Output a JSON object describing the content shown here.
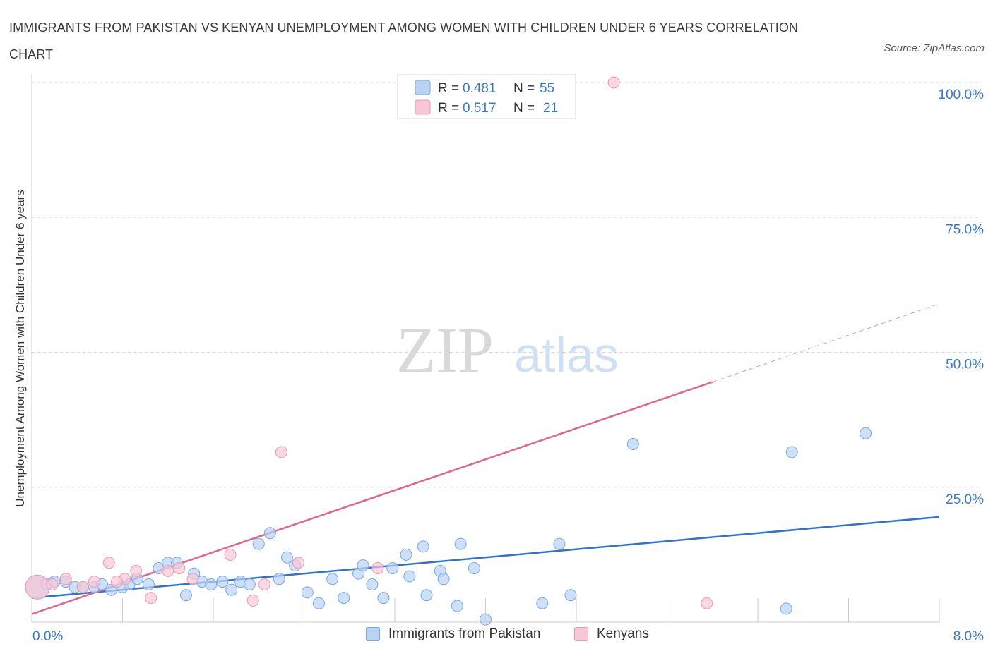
{
  "title": "IMMIGRANTS FROM PAKISTAN VS KENYAN UNEMPLOYMENT AMONG WOMEN WITH CHILDREN UNDER 6 YEARS CORRELATION CHART",
  "source": "Source: ZipAtlas.com",
  "watermark": {
    "zip": "ZIP",
    "atlas": "atlas"
  },
  "colors": {
    "blue_fill": "#b9d3f5",
    "blue_stroke": "#7aa8e0",
    "blue_line": "#2f73d0",
    "pink_fill": "#f8c6d6",
    "pink_stroke": "#e99ab3",
    "pink_line": "#e0648e",
    "value_text": "#3a78c9",
    "grid": "#d8d8d8"
  },
  "legend": {
    "rows": [
      {
        "r_label": "R = ",
        "r_value": "0.481",
        "n_label": "N = ",
        "n_value": "55",
        "color": "blue"
      },
      {
        "r_label": "R = ",
        "r_value": "0.517",
        "n_label": "N = ",
        "n_value": "21",
        "color": "pink"
      }
    ]
  },
  "chart_data": {
    "type": "scatter",
    "title": "IMMIGRANTS FROM PAKISTAN VS KENYAN UNEMPLOYMENT AMONG WOMEN WITH CHILDREN UNDER 6 YEARS CORRELATION CHART",
    "xlabel": "",
    "ylabel": "Unemployment Among Women with Children Under 6 years",
    "xlim": [
      0,
      8
    ],
    "ylim": [
      0,
      100
    ],
    "x_tick_labels": [
      "0.0%",
      "8.0%"
    ],
    "y_tick_labels": [
      "100.0%",
      "75.0%",
      "50.0%",
      "25.0%"
    ],
    "y_tick_values": [
      100,
      75,
      50,
      25
    ],
    "grid": true,
    "legend_position": "top-center and bottom",
    "series": [
      {
        "name": "Immigrants from Pakistan",
        "color": "blue",
        "trend": {
          "x0": 0,
          "y0": 4.5,
          "x1": 8,
          "y1": 19.5
        },
        "points": [
          [
            0.05,
            6.5,
            "big"
          ],
          [
            0.13,
            7
          ],
          [
            0.2,
            7.5
          ],
          [
            0.3,
            7.5
          ],
          [
            0.38,
            6.5
          ],
          [
            0.45,
            6.5
          ],
          [
            0.55,
            6.5
          ],
          [
            0.62,
            7
          ],
          [
            0.7,
            6
          ],
          [
            0.8,
            6.5
          ],
          [
            0.86,
            7
          ],
          [
            0.93,
            8
          ],
          [
            1.03,
            7
          ],
          [
            1.12,
            10
          ],
          [
            1.2,
            11
          ],
          [
            1.28,
            11
          ],
          [
            1.36,
            5
          ],
          [
            1.43,
            9
          ],
          [
            1.5,
            7.5
          ],
          [
            1.58,
            7
          ],
          [
            1.68,
            7.5
          ],
          [
            1.76,
            6
          ],
          [
            1.84,
            7.5
          ],
          [
            1.92,
            7
          ],
          [
            2.0,
            14.5
          ],
          [
            2.1,
            16.5
          ],
          [
            2.18,
            8
          ],
          [
            2.25,
            12
          ],
          [
            2.32,
            10.5
          ],
          [
            2.43,
            5.5
          ],
          [
            2.53,
            3.5
          ],
          [
            2.65,
            8
          ],
          [
            2.75,
            4.5
          ],
          [
            2.88,
            9
          ],
          [
            2.92,
            10.5
          ],
          [
            3.0,
            7
          ],
          [
            3.1,
            4.5
          ],
          [
            3.18,
            10
          ],
          [
            3.3,
            12.5
          ],
          [
            3.33,
            8.5
          ],
          [
            3.45,
            14
          ],
          [
            3.48,
            5
          ],
          [
            3.6,
            9.5
          ],
          [
            3.63,
            8
          ],
          [
            3.75,
            3
          ],
          [
            3.78,
            14.5
          ],
          [
            3.9,
            10
          ],
          [
            4.0,
            0.5
          ],
          [
            4.5,
            3.5
          ],
          [
            4.65,
            14.5
          ],
          [
            4.75,
            5
          ],
          [
            5.3,
            33
          ],
          [
            6.7,
            31.5
          ],
          [
            6.65,
            2.5
          ],
          [
            7.35,
            35
          ]
        ]
      },
      {
        "name": "Kenyans",
        "color": "pink",
        "trend": {
          "x0": 0,
          "y0": 1.5,
          "x1": 6.0,
          "y1": 44.5,
          "dash_x1": 8,
          "dash_y1": 59
        },
        "points": [
          [
            0.05,
            6.5,
            "big"
          ],
          [
            0.18,
            7
          ],
          [
            0.3,
            8
          ],
          [
            0.45,
            6.5
          ],
          [
            0.55,
            7.5
          ],
          [
            0.68,
            11
          ],
          [
            0.82,
            8
          ],
          [
            0.92,
            9.5
          ],
          [
            1.05,
            4.5
          ],
          [
            1.2,
            9.5
          ],
          [
            1.3,
            10
          ],
          [
            1.42,
            8
          ],
          [
            1.75,
            12.5
          ],
          [
            1.95,
            4
          ],
          [
            2.05,
            7
          ],
          [
            2.2,
            31.5
          ],
          [
            2.35,
            11
          ],
          [
            3.05,
            10
          ],
          [
            5.13,
            100
          ],
          [
            5.95,
            3.5
          ],
          [
            0.75,
            7.5
          ]
        ]
      }
    ]
  },
  "bottom_legend": [
    {
      "label": "Immigrants from Pakistan",
      "color": "blue"
    },
    {
      "label": "Kenyans",
      "color": "pink"
    }
  ]
}
